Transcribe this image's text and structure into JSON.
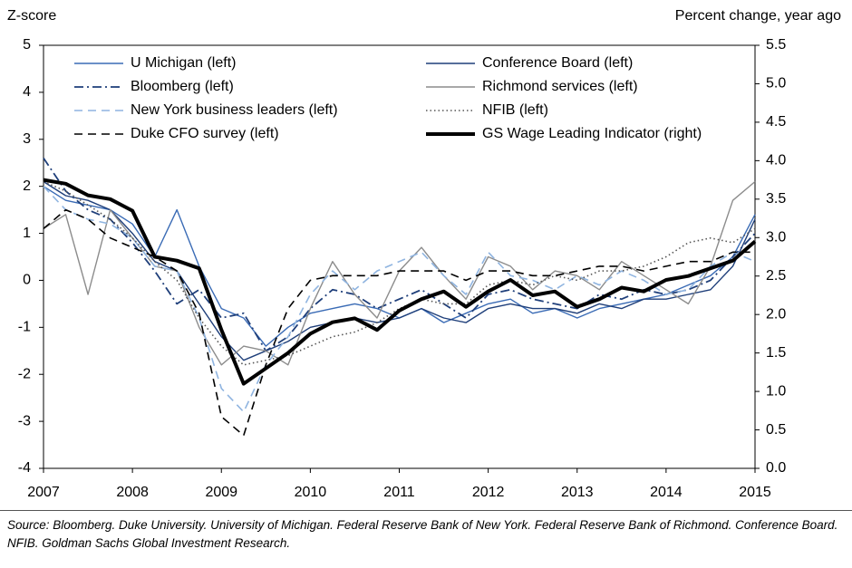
{
  "chart_data": {
    "type": "line",
    "y_label": "Z-score",
    "y2_label": "Percent change, year ago",
    "source": "Source: Bloomberg. Duke University. University of Michigan. Federal Reserve Bank of New York. Federal Reserve Bank of Richmond. Conference Board. NFIB. Goldman Sachs Global Investment Research.",
    "x": [
      2007,
      2007.25,
      2007.5,
      2007.75,
      2008,
      2008.25,
      2008.5,
      2008.75,
      2009,
      2009.25,
      2009.5,
      2009.75,
      2010,
      2010.25,
      2010.5,
      2010.75,
      2011,
      2011.25,
      2011.5,
      2011.75,
      2012,
      2012.25,
      2012.5,
      2012.75,
      2013,
      2013.25,
      2013.5,
      2013.75,
      2014,
      2014.25,
      2014.5,
      2014.75,
      2015
    ],
    "xlim": [
      2007,
      2015
    ],
    "xticks": [
      2007,
      2008,
      2009,
      2010,
      2011,
      2012,
      2013,
      2014,
      2015
    ],
    "ylim": [
      -4,
      5
    ],
    "yticks": [
      5,
      4,
      3,
      2,
      1,
      0,
      -1,
      -2,
      -3,
      -4
    ],
    "y2lim": [
      0,
      5.5
    ],
    "y2ticks": [
      {
        "value": 0,
        "label": "0.0"
      },
      0.5,
      {
        "value": 1,
        "label": "1.0"
      },
      1.5,
      {
        "value": 2,
        "label": "2.0"
      },
      2.5,
      {
        "value": 3,
        "label": "3.0"
      },
      3.5,
      {
        "value": 4,
        "label": "4.0"
      },
      4.5,
      {
        "value": 5,
        "label": "5.0"
      },
      5.5
    ],
    "legend": "top",
    "series": [
      {
        "name": "U Michigan (left)",
        "color": "#3a6bb5",
        "line_style": "solid",
        "values": [
          2.0,
          1.7,
          1.6,
          1.5,
          1.2,
          0.5,
          1.5,
          0.3,
          -0.6,
          -0.8,
          -1.4,
          -1.0,
          -0.7,
          -0.6,
          -0.5,
          -0.6,
          -0.8,
          -0.6,
          -0.9,
          -0.7,
          -0.5,
          -0.4,
          -0.7,
          -0.6,
          -0.8,
          -0.6,
          -0.5,
          -0.4,
          -0.3,
          -0.1,
          0.1,
          0.5,
          1.4
        ]
      },
      {
        "name": "Conference Board (left)",
        "color": "#1f3f7a",
        "line_style": "solid",
        "values": [
          2.1,
          1.8,
          1.7,
          1.5,
          1.0,
          0.4,
          0.2,
          -0.5,
          -1.2,
          -1.7,
          -1.5,
          -1.3,
          -1.0,
          -0.9,
          -0.8,
          -0.9,
          -0.8,
          -0.6,
          -0.8,
          -0.9,
          -0.6,
          -0.5,
          -0.6,
          -0.6,
          -0.7,
          -0.5,
          -0.6,
          -0.4,
          -0.4,
          -0.3,
          -0.2,
          0.3,
          1.3
        ]
      },
      {
        "name": "Bloomberg (left)",
        "color": "#1f3f7a",
        "line_style": "dashdot",
        "values": [
          2.6,
          1.9,
          1.5,
          1.3,
          0.8,
          0.2,
          -0.5,
          -0.2,
          -0.8,
          -0.7,
          -1.5,
          -1.2,
          -0.6,
          -0.2,
          -0.3,
          -0.6,
          -0.4,
          -0.2,
          -0.5,
          -0.8,
          -0.3,
          -0.2,
          -0.4,
          -0.5,
          -0.6,
          -0.3,
          -0.4,
          -0.2,
          -0.3,
          -0.2,
          0.0,
          0.5,
          1.0
        ]
      },
      {
        "name": "Richmond services (left)",
        "color": "#8c8c8c",
        "line_style": "solid",
        "values": [
          1.1,
          1.4,
          -0.3,
          1.5,
          0.9,
          0.3,
          0.2,
          -1.0,
          -1.8,
          -1.4,
          -1.5,
          -1.8,
          -0.6,
          0.4,
          -0.3,
          -0.8,
          0.2,
          0.7,
          0.1,
          -0.4,
          0.5,
          0.3,
          -0.2,
          0.2,
          0.1,
          -0.2,
          0.4,
          0.1,
          -0.2,
          -0.5,
          0.3,
          1.7,
          2.1
        ]
      },
      {
        "name": "New York business leaders (left)",
        "color": "#8fb4e0",
        "line_style": "dashed",
        "values": [
          2.0,
          1.5,
          1.3,
          1.2,
          0.9,
          0.3,
          0.2,
          -0.8,
          -2.3,
          -2.8,
          -1.8,
          -1.2,
          -0.3,
          0.2,
          -0.2,
          0.2,
          0.4,
          0.6,
          0.1,
          -0.3,
          0.6,
          0.1,
          0.0,
          -0.2,
          0.1,
          -0.1,
          0.2,
          0.0,
          -0.3,
          -0.2,
          0.3,
          0.6,
          0.4
        ]
      },
      {
        "name": "NFIB (left)",
        "color": "#555555",
        "line_style": "dotted",
        "values": [
          2.1,
          1.9,
          1.6,
          1.3,
          0.9,
          0.4,
          0.0,
          -0.8,
          -1.4,
          -1.8,
          -1.7,
          -1.6,
          -1.4,
          -1.2,
          -1.1,
          -0.9,
          -0.6,
          -0.4,
          -0.5,
          -0.5,
          -0.1,
          0.0,
          -0.1,
          0.1,
          0.0,
          0.2,
          0.2,
          0.3,
          0.5,
          0.8,
          0.9,
          0.8,
          1.1
        ]
      },
      {
        "name": "Duke CFO survey (left)",
        "color": "#000000",
        "line_style": "dashed",
        "values": [
          1.1,
          1.5,
          1.3,
          0.9,
          0.7,
          0.5,
          0.2,
          -0.7,
          -2.9,
          -3.3,
          -1.8,
          -0.6,
          0.0,
          0.1,
          0.1,
          0.1,
          0.2,
          0.2,
          0.2,
          0.0,
          0.2,
          0.2,
          0.1,
          0.1,
          0.2,
          0.3,
          0.3,
          0.2,
          0.3,
          0.4,
          0.4,
          0.6,
          0.6
        ]
      },
      {
        "name": "GS Wage Leading Indicator (right)",
        "color": "#000000",
        "line_style": "thick",
        "axis": "y2",
        "values": [
          3.75,
          3.7,
          3.55,
          3.5,
          3.35,
          2.75,
          2.7,
          2.6,
          1.8,
          1.1,
          1.3,
          1.5,
          1.75,
          1.9,
          1.95,
          1.8,
          2.05,
          2.2,
          2.3,
          2.1,
          2.3,
          2.45,
          2.25,
          2.3,
          2.1,
          2.2,
          2.35,
          2.3,
          2.45,
          2.5,
          2.6,
          2.7,
          2.95
        ]
      }
    ]
  }
}
